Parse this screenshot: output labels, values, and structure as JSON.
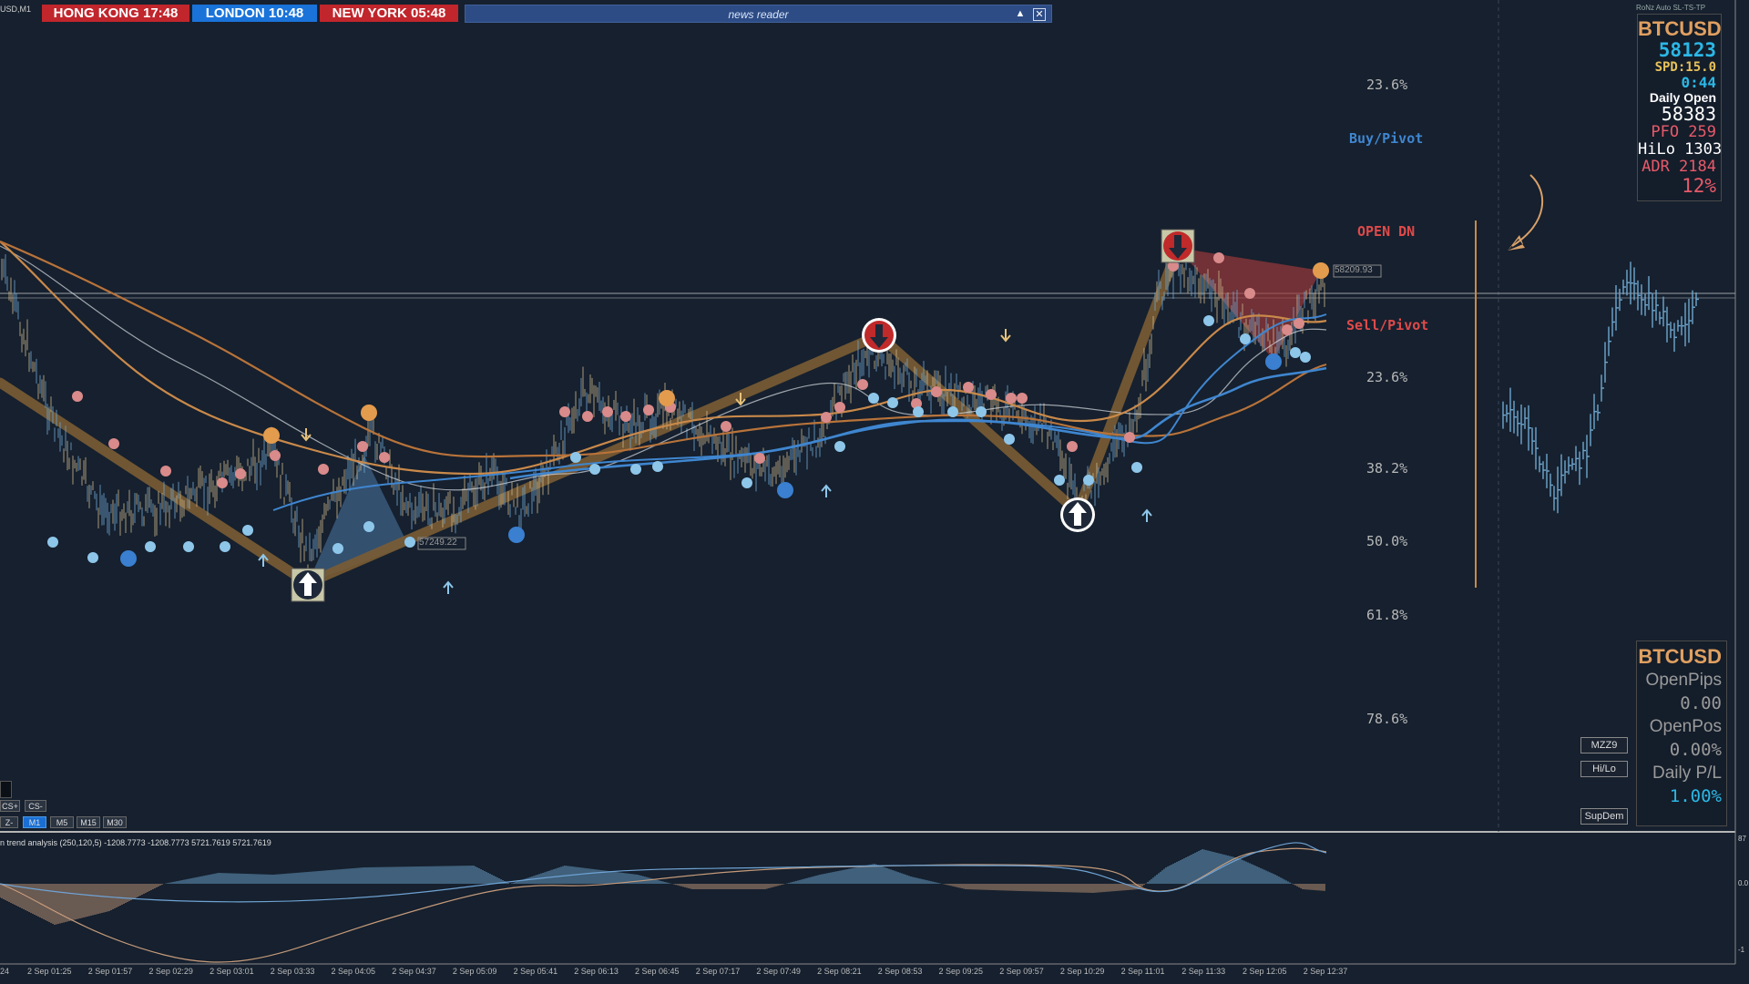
{
  "header": {
    "symbol_fragment": "USD,M1",
    "top_right_text": "RoNz Auto SL-TS-TP"
  },
  "clocks": [
    {
      "label": "HONG KONG 17:48",
      "color": "#c0262c"
    },
    {
      "label": "LONDON  10:48",
      "color": "#1a73d9"
    },
    {
      "label": "NEW YORK  05:48",
      "color": "#c0262c"
    }
  ],
  "news_reader": {
    "title": "news reader",
    "collapse_icon": "triangle-up-icon",
    "close_icon": "close-box-icon"
  },
  "fib_levels": [
    "23.6%",
    "23.6%",
    "38.2%",
    "50.0%",
    "61.8%",
    "78.6%"
  ],
  "pivot_labels": {
    "buy": "Buy/Pivot",
    "open": "OPEN DN",
    "sell": "Sell/Pivot"
  },
  "price_tags": {
    "upper": "58209.93",
    "lower": "57249.22"
  },
  "info_panel": {
    "symbol": "BTCUSD",
    "price": "58123",
    "spread": "SPD:15.0",
    "timer": "0:44",
    "daily_open_label": "Daily Open",
    "daily_open": "58383",
    "pfo": "PFO  259",
    "hilo": "HiLo 1303",
    "adr": "ADR 2184",
    "pct": "12%"
  },
  "position_panel": {
    "symbol": "BTCUSD",
    "open_pips_label": "OpenPips",
    "open_pips": "0.00",
    "open_pos_label": "OpenPos",
    "open_pos": "0.00%",
    "daily_pl_label": "Daily P/L",
    "daily_pl": "1.00%"
  },
  "side_buttons": {
    "mzz": "MZZ9",
    "hilo": "Hi/Lo",
    "supdem": "SupDem"
  },
  "tf_buttons": {
    "cs_plus": "CS+",
    "cs_minus": "CS-",
    "z": "Z-",
    "m1": "M1",
    "m5": "M5",
    "m15": "M15",
    "m30": "M30"
  },
  "sub_window": {
    "title": "n trend analysis (250,120,5) -1208.7773 -1208.7773 5721.7619 5721.7619"
  },
  "time_axis": [
    "24",
    "2 Sep 01:25",
    "2 Sep 01:57",
    "2 Sep 02:29",
    "2 Sep 03:01",
    "2 Sep 03:33",
    "2 Sep 04:05",
    "2 Sep 04:37",
    "2 Sep 05:09",
    "2 Sep 05:41",
    "2 Sep 06:13",
    "2 Sep 06:45",
    "2 Sep 07:17",
    "2 Sep 07:49",
    "2 Sep 08:21",
    "2 Sep 08:53",
    "2 Sep 09:25",
    "2 Sep 09:57",
    "2 Sep 10:29",
    "2 Sep 11:01",
    "2 Sep 11:33",
    "2 Sep 12:05",
    "2 Sep 12:37"
  ],
  "right_axis_labels": {
    "sub_top": "87",
    "sub_zero": "0.0",
    "sub_bottom": "-1"
  },
  "colors": {
    "background": "#16202e",
    "bull": "#6ea6cf",
    "bear": "#d98a8a",
    "ma_orange": "#c9894a",
    "ma_blue": "#3f86d0",
    "zigzag": "#7a5c34"
  }
}
